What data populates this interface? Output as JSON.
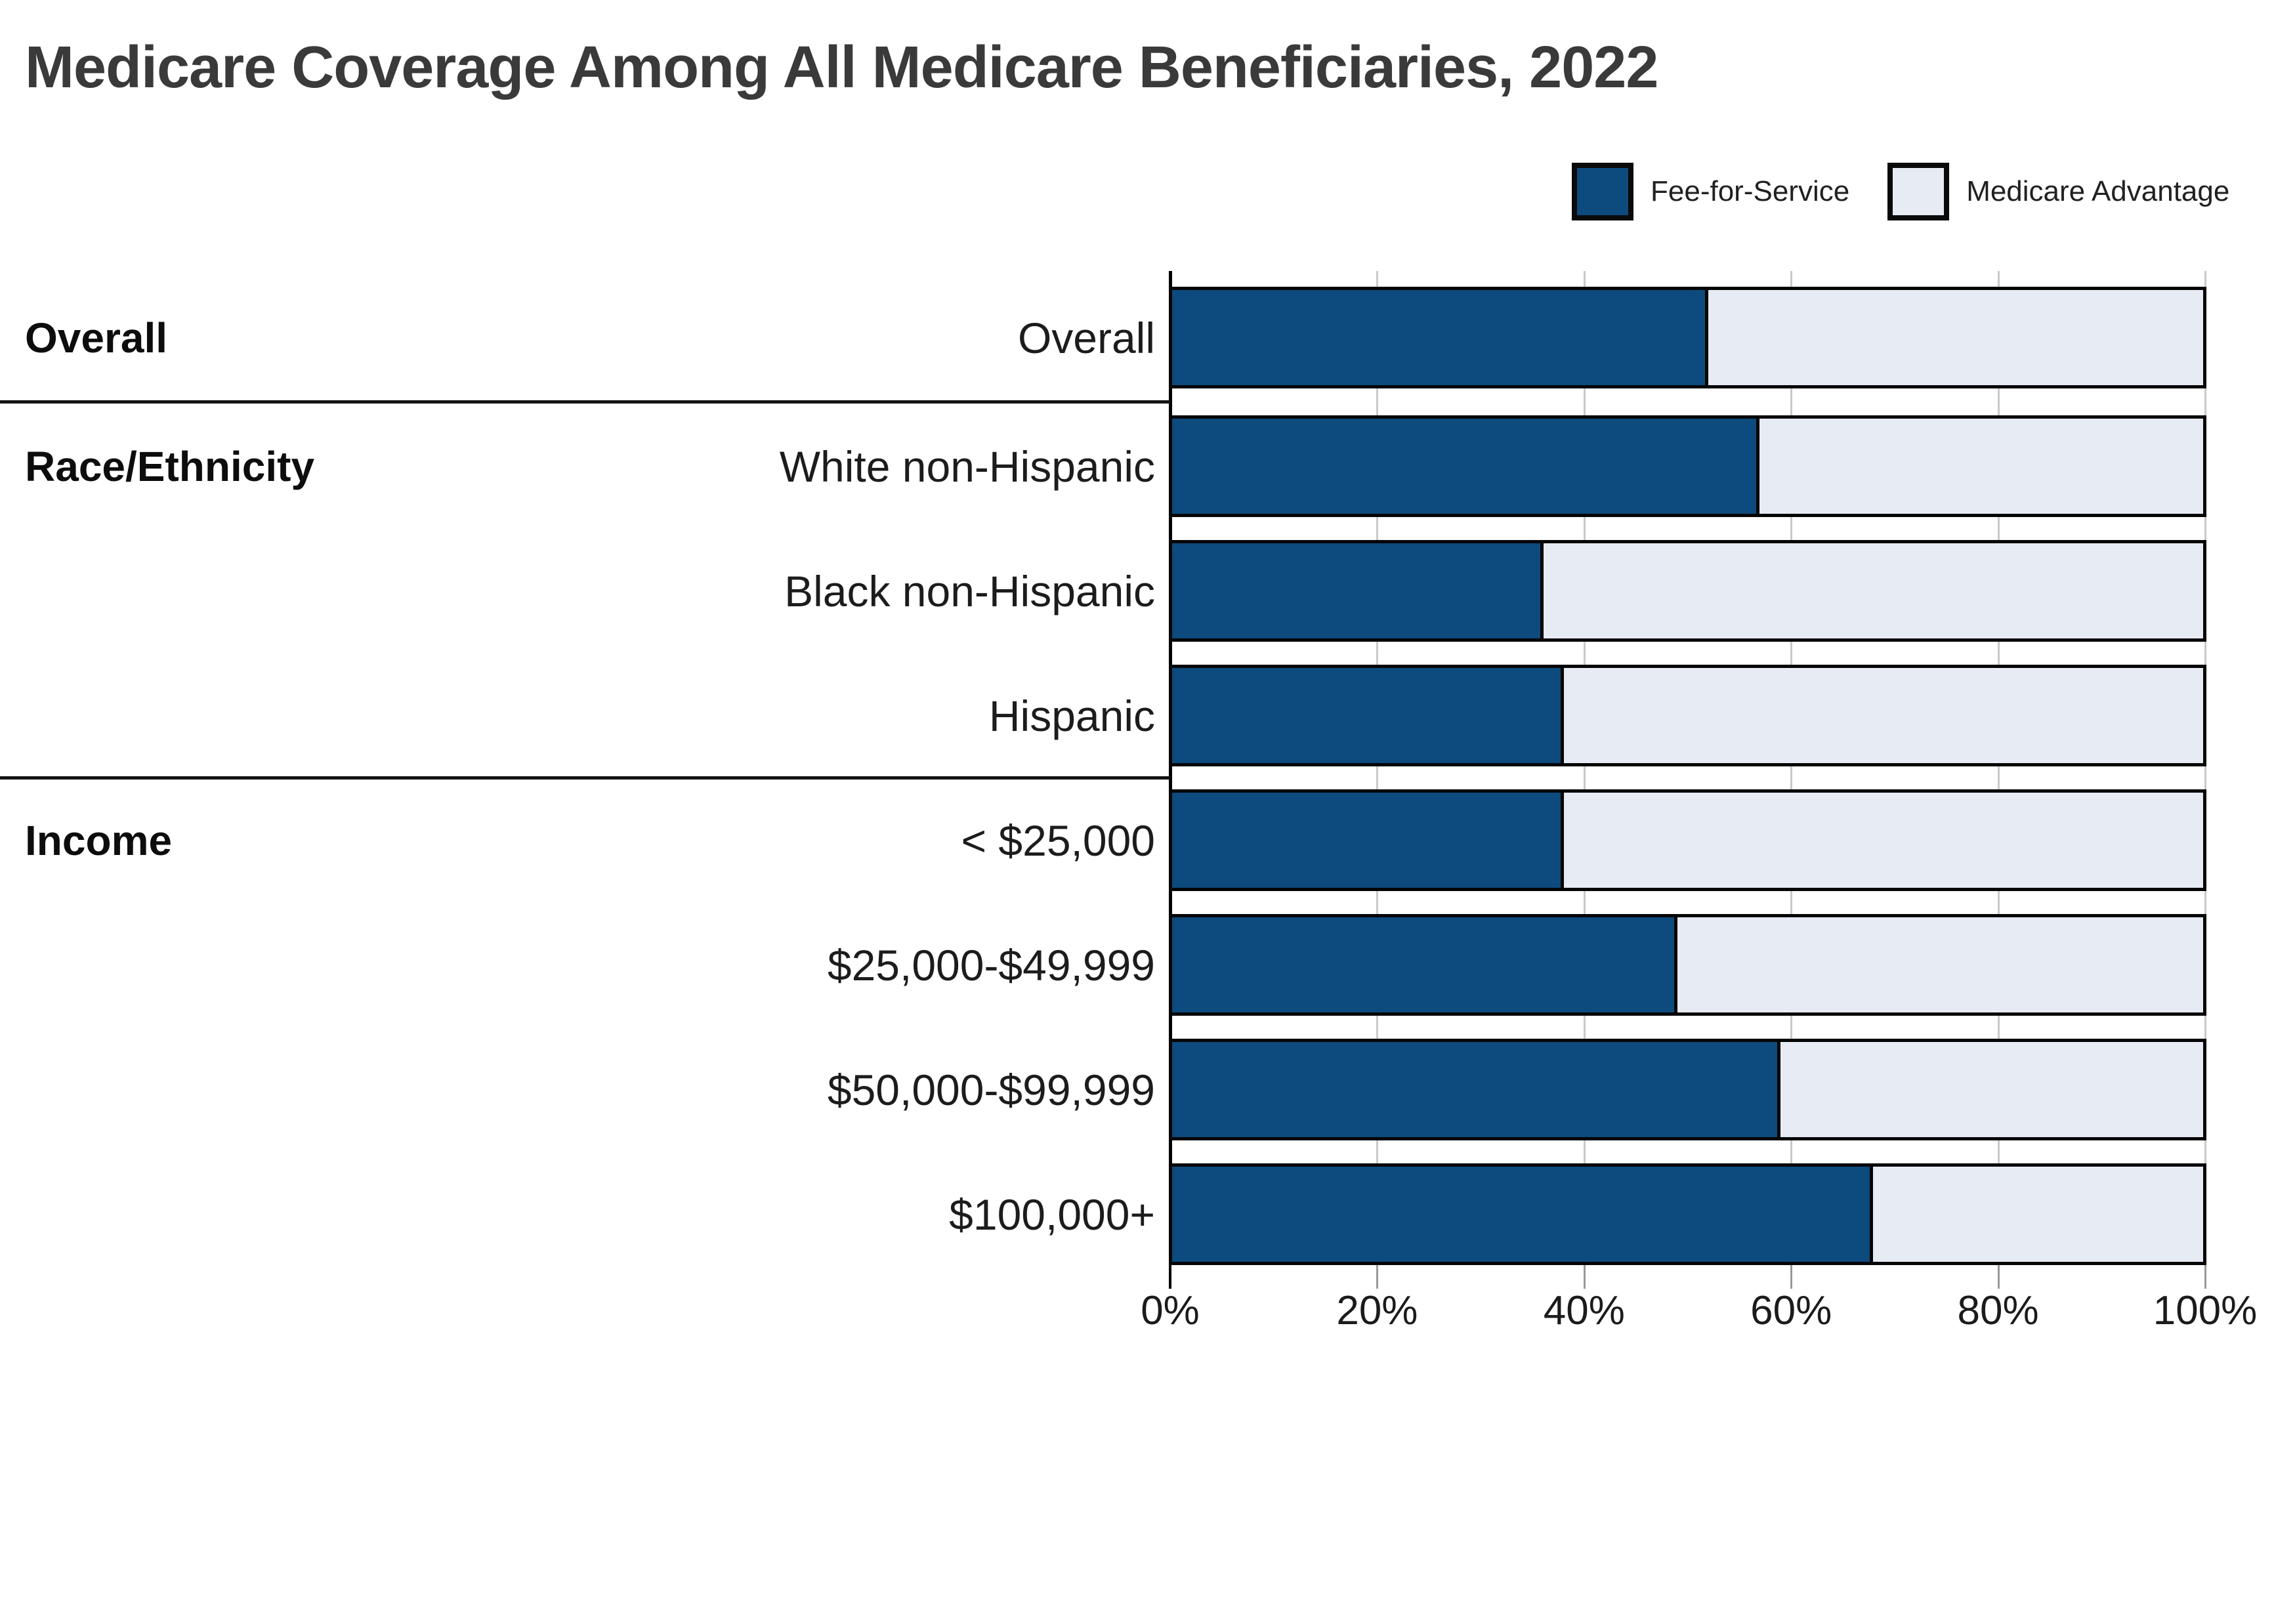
{
  "title": "Medicare Coverage Among All Medicare Beneficiaries, 2022",
  "legend": [
    {
      "label": "Fee-for-Service",
      "swatch_icon": "filled-square-icon",
      "color": "#0d4a7d"
    },
    {
      "label": "Medicare Advantage",
      "swatch_icon": "filled-square-icon",
      "color": "#e7ebf3"
    }
  ],
  "chart_data": {
    "type": "bar",
    "orientation": "horizontal",
    "stacked": true,
    "unit": "percent",
    "title": "Medicare Coverage Among All Medicare Beneficiaries, 2022",
    "categories": [
      "Overall",
      "White non-Hispanic",
      "Black non-Hispanic",
      "Hispanic",
      "< $25,000",
      "$25,000-$49,999",
      "$50,000-$99,999",
      "$100,000+"
    ],
    "groups": [
      {
        "label": "Overall",
        "row_indexes": [
          0
        ]
      },
      {
        "label": "Race/Ethnicity",
        "row_indexes": [
          1,
          2,
          3
        ]
      },
      {
        "label": "Income",
        "row_indexes": [
          4,
          5,
          6,
          7
        ]
      }
    ],
    "series": [
      {
        "name": "Fee-for-Service",
        "color": "#0d4a7d",
        "values": [
          52,
          57,
          36,
          38,
          38,
          49,
          59,
          68
        ]
      },
      {
        "name": "Medicare Advantage",
        "color": "#e7ebf3",
        "values": [
          48,
          43,
          64,
          62,
          62,
          51,
          41,
          32
        ]
      }
    ],
    "xlabel": "",
    "ylabel": "",
    "xlim": [
      0,
      100
    ],
    "x_tick_labels": [
      "0%",
      "20%",
      "40%",
      "60%",
      "80%",
      "100%"
    ],
    "x_tick_values": [
      0,
      20,
      40,
      60,
      80,
      100
    ],
    "grid": true,
    "legend_position": "top-right",
    "colors": {
      "bar_border": "#050505",
      "gridline": "#c9c9c9",
      "axis": "#000000",
      "group_divider": "#141414",
      "title_text": "#3a3a3a",
      "label_text": "#1c1c1c"
    }
  }
}
